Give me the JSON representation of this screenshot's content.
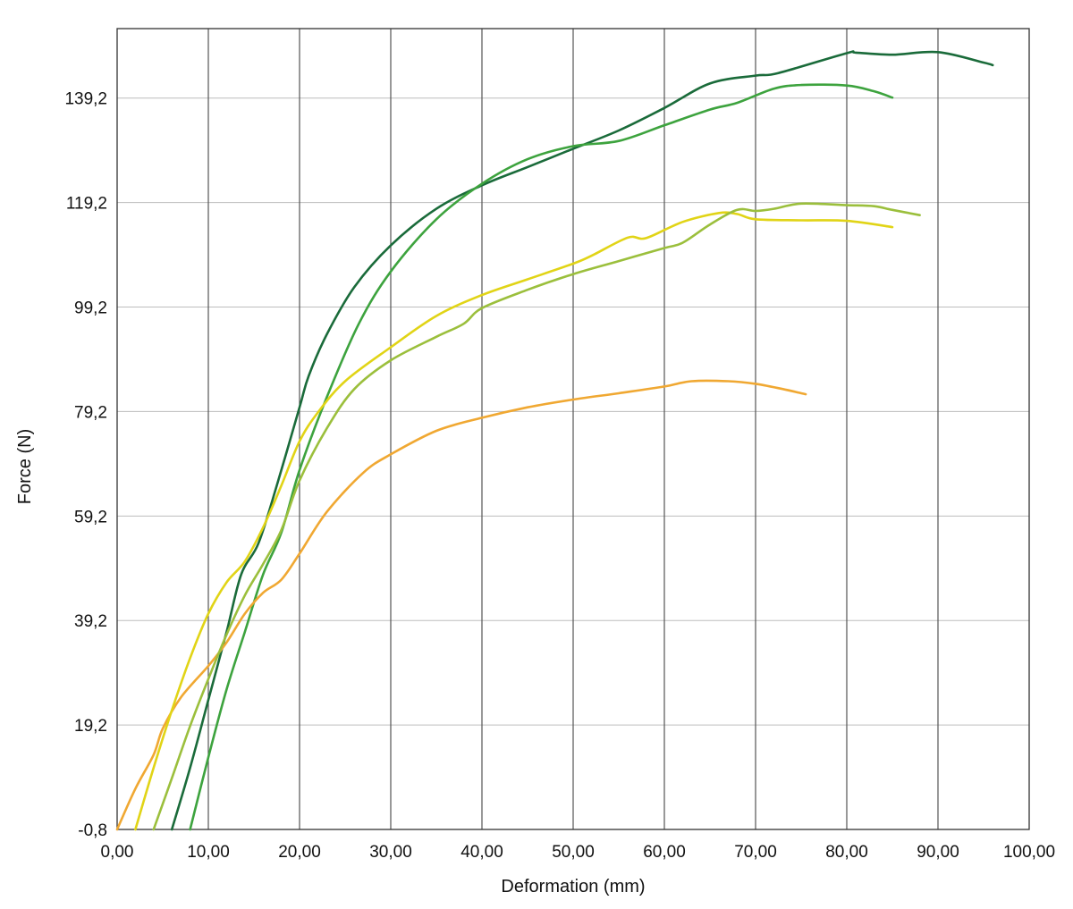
{
  "chart_data": {
    "type": "line",
    "title": "",
    "xlabel": "Deformation (mm)",
    "ylabel": "Force (N)",
    "xlim": [
      0,
      100
    ],
    "ylim": [
      -0.8,
      152.5
    ],
    "x_ticks": [
      0,
      10,
      20,
      30,
      40,
      50,
      60,
      70,
      80,
      90,
      100
    ],
    "x_tick_labels": [
      "0,00",
      "10,00",
      "20,00",
      "30,00",
      "40,00",
      "50,00",
      "60,00",
      "70,00",
      "80,00",
      "90,00",
      "100,00"
    ],
    "y_ticks": [
      -0.8,
      19.2,
      39.2,
      59.2,
      79.2,
      99.2,
      119.2,
      139.2
    ],
    "y_tick_labels": [
      "-0,8",
      "19,2",
      "39,2",
      "59,2",
      "79,2",
      "99,2",
      "119,2",
      "139,2"
    ],
    "grid": true,
    "legend": "none",
    "series": [
      {
        "color": "#1a6b3a",
        "points": [
          [
            6.0,
            -0.8
          ],
          [
            8.0,
            11
          ],
          [
            10.0,
            24
          ],
          [
            12.0,
            37
          ],
          [
            13.6,
            48
          ],
          [
            15.5,
            54
          ],
          [
            17.5,
            65
          ],
          [
            20.0,
            80
          ],
          [
            21.0,
            86
          ],
          [
            23.0,
            94
          ],
          [
            26.0,
            103
          ],
          [
            30.0,
            111
          ],
          [
            35.0,
            118
          ],
          [
            40.0,
            122.5
          ],
          [
            45.0,
            126
          ],
          [
            50.0,
            129.5
          ],
          [
            55.0,
            133
          ],
          [
            60.0,
            137.3
          ],
          [
            65.0,
            142
          ],
          [
            70.0,
            143.5
          ],
          [
            72.5,
            144
          ],
          [
            80.0,
            147.8
          ],
          [
            81.0,
            147.9
          ],
          [
            85.0,
            147.5
          ],
          [
            90.0,
            148
          ],
          [
            95.0,
            146
          ],
          [
            96.0,
            145.5
          ]
        ]
      },
      {
        "color": "#3da33e",
        "points": [
          [
            8.0,
            -0.8
          ],
          [
            10.0,
            13
          ],
          [
            12.0,
            26
          ],
          [
            14.0,
            37
          ],
          [
            16.0,
            48
          ],
          [
            18.0,
            56
          ],
          [
            20.0,
            68
          ],
          [
            23.0,
            82
          ],
          [
            26.5,
            96
          ],
          [
            30.0,
            106
          ],
          [
            35.0,
            116
          ],
          [
            40.0,
            122.8
          ],
          [
            45.0,
            127.5
          ],
          [
            50.0,
            130
          ],
          [
            55.0,
            131
          ],
          [
            60.0,
            134
          ],
          [
            65.0,
            137
          ],
          [
            68.0,
            138.3
          ],
          [
            72.0,
            141
          ],
          [
            75.0,
            141.7
          ],
          [
            80.0,
            141.6
          ],
          [
            83.0,
            140.5
          ],
          [
            85.0,
            139.3
          ]
        ]
      },
      {
        "color": "#f0a832",
        "points": [
          [
            0.0,
            -0.8
          ],
          [
            2.0,
            7
          ],
          [
            4.0,
            13.5
          ],
          [
            5.0,
            18.5
          ],
          [
            7.0,
            24.5
          ],
          [
            10.0,
            30.5
          ],
          [
            12.0,
            35
          ],
          [
            14.0,
            40.5
          ],
          [
            16.0,
            44.5
          ],
          [
            18.0,
            47
          ],
          [
            20.0,
            52
          ],
          [
            23.0,
            60
          ],
          [
            27.0,
            67.5
          ],
          [
            30.0,
            71
          ],
          [
            35.0,
            75.5
          ],
          [
            40.0,
            78
          ],
          [
            45.0,
            80
          ],
          [
            50.0,
            81.5
          ],
          [
            55.0,
            82.7
          ],
          [
            60.0,
            84
          ],
          [
            63.0,
            85
          ],
          [
            67.0,
            85
          ],
          [
            70.0,
            84.5
          ],
          [
            73.0,
            83.5
          ],
          [
            75.5,
            82.5
          ]
        ]
      },
      {
        "color": "#e1d416",
        "points": [
          [
            2.0,
            -0.8
          ],
          [
            4.0,
            11
          ],
          [
            6.0,
            22
          ],
          [
            8.0,
            32
          ],
          [
            10.0,
            40.5
          ],
          [
            12.0,
            46.5
          ],
          [
            14.0,
            50.5
          ],
          [
            16.0,
            57
          ],
          [
            18.0,
            65
          ],
          [
            20.0,
            73.5
          ],
          [
            22.0,
            79
          ],
          [
            25.0,
            85
          ],
          [
            30.0,
            91.5
          ],
          [
            35.0,
            97.5
          ],
          [
            40.0,
            101.5
          ],
          [
            45.0,
            104.5
          ],
          [
            50.0,
            107.5
          ],
          [
            52.0,
            109
          ],
          [
            56.0,
            112.5
          ],
          [
            58.0,
            112.4
          ],
          [
            62.0,
            115.5
          ],
          [
            66.0,
            117.2
          ],
          [
            68.0,
            117
          ],
          [
            70.0,
            116
          ],
          [
            75.0,
            115.8
          ],
          [
            80.0,
            115.7
          ],
          [
            85.0,
            114.5
          ]
        ]
      },
      {
        "color": "#9bbf3c",
        "points": [
          [
            4.0,
            -0.8
          ],
          [
            6.0,
            9
          ],
          [
            8.0,
            19
          ],
          [
            10.0,
            28
          ],
          [
            12.0,
            36.5
          ],
          [
            14.0,
            44
          ],
          [
            16.0,
            50
          ],
          [
            18.0,
            56.5
          ],
          [
            20.0,
            66
          ],
          [
            23.0,
            76
          ],
          [
            26.0,
            83.5
          ],
          [
            30.0,
            89
          ],
          [
            35.0,
            93.5
          ],
          [
            38.0,
            96
          ],
          [
            40.0,
            99
          ],
          [
            45.0,
            102.5
          ],
          [
            50.0,
            105.5
          ],
          [
            55.0,
            108
          ],
          [
            60.0,
            110.5
          ],
          [
            62.0,
            111.5
          ],
          [
            65.0,
            115
          ],
          [
            68.0,
            117.8
          ],
          [
            70.0,
            117.6
          ],
          [
            72.0,
            118
          ],
          [
            75.0,
            119
          ],
          [
            80.0,
            118.7
          ],
          [
            83.0,
            118.5
          ],
          [
            85.0,
            117.8
          ],
          [
            88.0,
            116.8
          ]
        ]
      }
    ]
  }
}
